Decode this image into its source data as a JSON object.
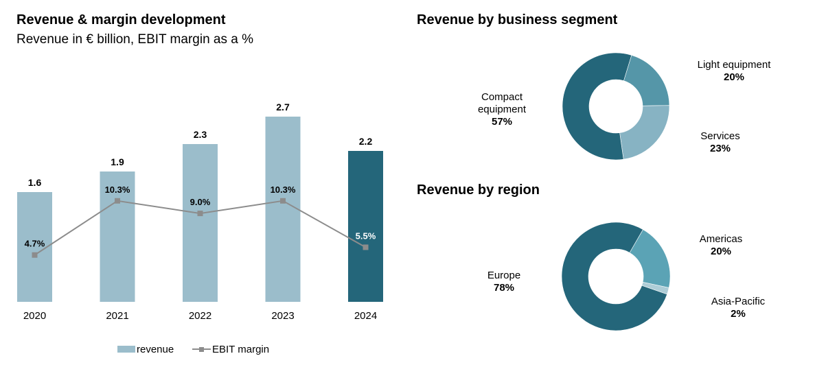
{
  "left_panel": {
    "title": "Revenue & margin development",
    "subtitle": "Revenue in € billion, EBIT margin as a %"
  },
  "right_panel": {
    "segment_title": "Revenue by business segment",
    "region_title": "Revenue by region"
  },
  "colors": {
    "bar": "#9bbdcb",
    "bar_highlight": "#24667a",
    "line": "#8c8c8c",
    "donut_main": "#24667a",
    "donut_second": "#5596a8",
    "donut_third": "#87b3c3",
    "donut_region_second": "#5ba3b5",
    "donut_region_third": "#aecdd7"
  },
  "chart_data": [
    {
      "type": "bar",
      "title": "Revenue & margin development",
      "subtitle": "Revenue in € billion, EBIT margin as a %",
      "categories": [
        "2020",
        "2021",
        "2022",
        "2023",
        "2024"
      ],
      "series": [
        {
          "name": "revenue",
          "kind": "bar",
          "values": [
            1.6,
            1.9,
            2.3,
            2.7,
            2.2
          ],
          "labels": [
            "1.6",
            "1.9",
            "2.3",
            "2.7",
            "2.2"
          ],
          "highlight_index": 4
        },
        {
          "name": "EBIT margin",
          "kind": "line",
          "values": [
            4.7,
            10.3,
            9.0,
            10.3,
            5.5
          ],
          "labels": [
            "4.7%",
            "10.3%",
            "9.0%",
            "10.3%",
            "5.5%"
          ]
        }
      ],
      "legend": [
        "revenue",
        "EBIT margin"
      ],
      "legend_position": "bottom",
      "grid": false
    },
    {
      "type": "pie",
      "title": "Revenue by business segment",
      "donut": true,
      "slices": [
        {
          "name": "Light equipment",
          "value": 20,
          "label": "20%"
        },
        {
          "name": "Services",
          "value": 23,
          "label": "23%"
        },
        {
          "name": "Compact equipment",
          "value": 57,
          "label": "57%"
        }
      ]
    },
    {
      "type": "pie",
      "title": "Revenue by region",
      "donut": true,
      "slices": [
        {
          "name": "Americas",
          "value": 20,
          "label": "20%"
        },
        {
          "name": "Asia-Pacific",
          "value": 2,
          "label": "2%"
        },
        {
          "name": "Europe",
          "value": 78,
          "label": "78%"
        }
      ]
    }
  ]
}
